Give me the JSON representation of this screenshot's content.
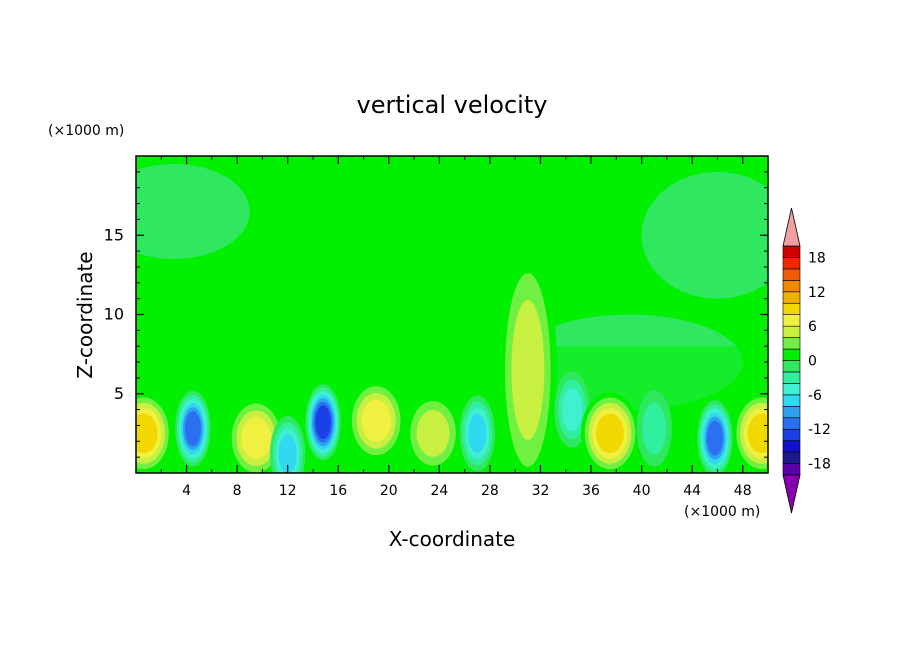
{
  "chart_data": {
    "type": "heatmap",
    "title": "vertical velocity",
    "xlabel": "X-coordinate",
    "ylabel": "Z-coordinate",
    "x_unit": "(×1000 m)",
    "y_unit": "(×1000 m)",
    "xlim": [
      0,
      50
    ],
    "ylim": [
      0,
      20
    ],
    "x_ticks": [
      4,
      8,
      12,
      16,
      20,
      24,
      28,
      32,
      36,
      40,
      44,
      48
    ],
    "y_ticks": [
      5,
      10,
      15
    ],
    "colorbar": {
      "levels": [
        -20,
        -18,
        -16,
        -14,
        -12,
        -10,
        -8,
        -6,
        -4,
        -2,
        0,
        2,
        4,
        6,
        8,
        10,
        12,
        14,
        16,
        18,
        20
      ],
      "labels": [
        18,
        12,
        6,
        0,
        -6,
        -12,
        -18
      ],
      "colors": [
        "#5a00a8",
        "#1a1a8c",
        "#1010c8",
        "#1a40e8",
        "#2a70f0",
        "#30a0f0",
        "#30d8f0",
        "#40f0d0",
        "#30f0a0",
        "#30e860",
        "#00f000",
        "#70f040",
        "#c8f040",
        "#f0f040",
        "#f0d800",
        "#f0b000",
        "#f08800",
        "#f05a00",
        "#f02800",
        "#d00000"
      ],
      "over_color": "#f0a0a0",
      "under_color": "#8800b0",
      "extend": "both"
    },
    "features": [
      {
        "x": 0.6,
        "z": 2.5,
        "value": 9
      },
      {
        "x": 4.5,
        "z": 2.8,
        "value": -12
      },
      {
        "x": 9.5,
        "z": 2.2,
        "value": 8
      },
      {
        "x": 12,
        "z": 1.2,
        "value": -8
      },
      {
        "x": 14.8,
        "z": 3.2,
        "value": -13
      },
      {
        "x": 19,
        "z": 3.3,
        "value": 8
      },
      {
        "x": 23.5,
        "z": 2.5,
        "value": 6
      },
      {
        "x": 27,
        "z": 2.5,
        "value": -7
      },
      {
        "x": 31,
        "z": 6.5,
        "value": 5
      },
      {
        "x": 34.5,
        "z": 4,
        "value": -6
      },
      {
        "x": 37.5,
        "z": 2.5,
        "value": 9
      },
      {
        "x": 41,
        "z": 2.8,
        "value": -3
      },
      {
        "x": 45.8,
        "z": 2.2,
        "value": -11
      },
      {
        "x": 49.5,
        "z": 2.5,
        "value": 9
      }
    ]
  }
}
